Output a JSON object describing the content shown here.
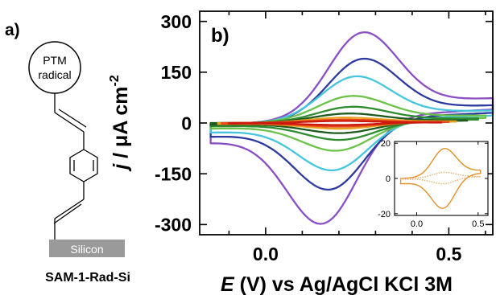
{
  "panel_a": {
    "label": "a)",
    "molecule": {
      "head_group_line1": "PTM",
      "head_group_line2": "radical",
      "substrate": "Silicon",
      "name": "SAM-1-Rad-Si"
    }
  },
  "chart_data": [
    {
      "type": "line",
      "panel_label": "b)",
      "xlabel_symbol": "E",
      "xlabel_rest": " (V) vs Ag/AgCl KCl 3M",
      "ylabel_symbol": "j",
      "ylabel_rest": " / μA cm",
      "ylabel_exponent": "-2",
      "xlim": [
        -0.18,
        0.62
      ],
      "ylim": [
        -330,
        330
      ],
      "xticks": [
        0.0,
        0.5
      ],
      "xtick_labels": [
        "0.0",
        "0.5"
      ],
      "yticks": [
        300,
        150,
        0,
        -150,
        -300
      ],
      "ytick_labels": [
        "300",
        "150",
        "0",
        "-150",
        "-300"
      ],
      "grid": false,
      "series": [
        {
          "color": "#8a4fc4",
          "E1": -0.15,
          "E2": 0.62,
          "peak_anodic": {
            "E": 0.27,
            "j": 268
          },
          "peak_cathodic": {
            "E": 0.15,
            "j": -298
          },
          "end_upper": 25,
          "end_lower": 40,
          "start_j": -5
        },
        {
          "color": "#2e3b9e",
          "E1": -0.15,
          "E2": 0.62,
          "peak_anodic": {
            "E": 0.27,
            "j": 190
          },
          "peak_cathodic": {
            "E": 0.17,
            "j": -197
          },
          "end_upper": 18,
          "end_lower": 30,
          "start_j": -5
        },
        {
          "color": "#45c6dc",
          "E1": -0.15,
          "E2": 0.62,
          "peak_anodic": {
            "E": 0.25,
            "j": 138
          },
          "peak_cathodic": {
            "E": 0.18,
            "j": -140
          },
          "end_upper": 12,
          "end_lower": 22,
          "start_j": -3
        },
        {
          "color": "#6cc24a",
          "E1": -0.15,
          "E2": 0.6,
          "peak_anodic": {
            "E": 0.24,
            "j": 80
          },
          "peak_cathodic": {
            "E": 0.19,
            "j": -82
          },
          "end_upper": 8,
          "end_lower": 15,
          "start_j": -2
        },
        {
          "color": "#2e8b2e",
          "E1": -0.15,
          "E2": 0.58,
          "peak_anodic": {
            "E": 0.24,
            "j": 48
          },
          "peak_cathodic": {
            "E": 0.2,
            "j": -50
          },
          "end_upper": 5,
          "end_lower": 10,
          "start_j": -1
        },
        {
          "color": "#1f5a1f",
          "E1": -0.15,
          "E2": 0.55,
          "peak_anodic": {
            "E": 0.23,
            "j": 28
          },
          "peak_cathodic": {
            "E": 0.2,
            "j": -30
          },
          "end_upper": 3,
          "end_lower": 7,
          "start_j": 0
        },
        {
          "color": "#e8a020",
          "E1": -0.13,
          "E2": 0.52,
          "peak_anodic": {
            "E": 0.22,
            "j": 16
          },
          "peak_cathodic": {
            "E": 0.2,
            "j": -17
          },
          "end_upper": 2,
          "end_lower": 4,
          "start_j": 0
        },
        {
          "color": "#e84a1a",
          "E1": -0.12,
          "E2": 0.5,
          "peak_anodic": {
            "E": 0.22,
            "j": 10
          },
          "peak_cathodic": {
            "E": 0.2,
            "j": -11
          },
          "end_upper": 1,
          "end_lower": 3,
          "start_j": 0
        },
        {
          "color": "#cc1a10",
          "E1": -0.1,
          "E2": 0.48,
          "peak_anodic": {
            "E": 0.21,
            "j": 6
          },
          "peak_cathodic": {
            "E": 0.2,
            "j": -6
          },
          "end_upper": 0,
          "end_lower": 2,
          "start_j": 0
        }
      ]
    },
    {
      "type": "line",
      "role": "inset",
      "xlim": [
        -0.18,
        0.58
      ],
      "ylim": [
        -21,
        21
      ],
      "xticks": [
        0.0,
        0.5
      ],
      "xtick_labels": [
        "0.0",
        "0.5"
      ],
      "yticks": [
        20,
        0,
        -20
      ],
      "ytick_labels": [
        "20",
        "0",
        "-20"
      ],
      "series": [
        {
          "color": "#e0902a",
          "E1": -0.13,
          "E2": 0.52,
          "peak_anodic": {
            "E": 0.23,
            "j": 17
          },
          "peak_cathodic": {
            "E": 0.21,
            "j": -17
          },
          "end_upper": 1.5,
          "end_lower": 3,
          "start_j": 0
        },
        {
          "color": "#e8b070",
          "dashed": true,
          "E1": -0.13,
          "E2": 0.52,
          "peak_anodic": {
            "E": 0.23,
            "j": 3.5
          },
          "peak_cathodic": {
            "E": 0.21,
            "j": -3
          },
          "end_upper": 0.5,
          "end_lower": 1,
          "start_j": 0
        }
      ]
    }
  ]
}
